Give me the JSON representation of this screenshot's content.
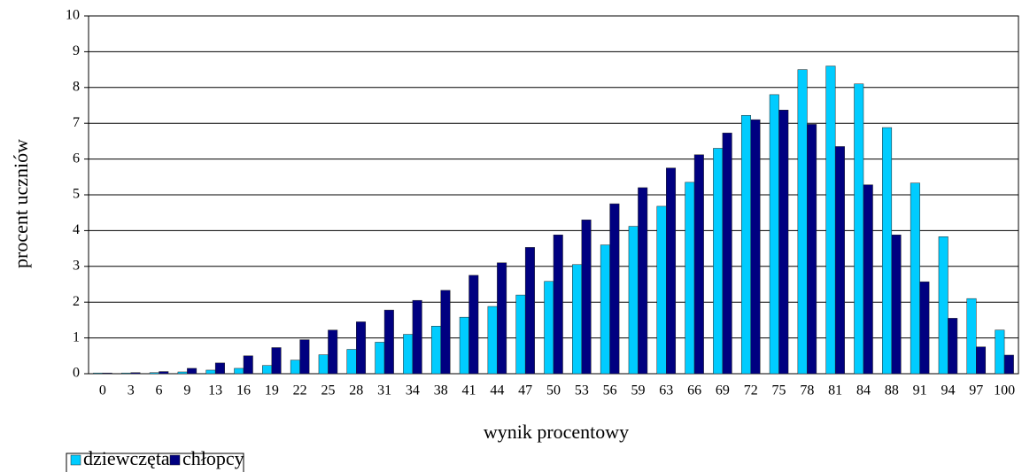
{
  "chart_data": {
    "type": "bar",
    "xlabel": "wynik procentowy",
    "ylabel": "procent uczniów",
    "categories": [
      "0",
      "3",
      "6",
      "9",
      "13",
      "16",
      "19",
      "22",
      "25",
      "28",
      "31",
      "34",
      "38",
      "41",
      "44",
      "47",
      "50",
      "53",
      "56",
      "59",
      "63",
      "66",
      "69",
      "72",
      "75",
      "78",
      "81",
      "84",
      "88",
      "91",
      "94",
      "97",
      "100"
    ],
    "series": [
      {
        "name": "dziewczęta",
        "color": "#00ccff",
        "values": [
          0.02,
          0.02,
          0.03,
          0.05,
          0.1,
          0.15,
          0.23,
          0.38,
          0.53,
          0.68,
          0.88,
          1.1,
          1.33,
          1.58,
          1.88,
          2.2,
          2.58,
          3.05,
          3.6,
          4.12,
          4.68,
          5.35,
          6.3,
          7.22,
          7.8,
          8.5,
          8.6,
          8.1,
          6.88,
          5.33,
          3.83,
          2.1,
          1.22
        ]
      },
      {
        "name": "chłopcy",
        "color": "#000080",
        "values": [
          0.02,
          0.03,
          0.06,
          0.15,
          0.3,
          0.5,
          0.73,
          0.95,
          1.22,
          1.45,
          1.78,
          2.05,
          2.33,
          2.75,
          3.1,
          3.53,
          3.88,
          4.3,
          4.75,
          5.2,
          5.75,
          6.12,
          6.73,
          7.1,
          7.37,
          6.97,
          6.35,
          5.28,
          3.88,
          2.57,
          1.55,
          0.75,
          0.52
        ]
      }
    ],
    "ylim": [
      0,
      10
    ],
    "yticks": [
      0,
      1,
      2,
      3,
      4,
      5,
      6,
      7,
      8,
      9,
      10
    ],
    "grid": true,
    "legend": "bottom-left"
  }
}
